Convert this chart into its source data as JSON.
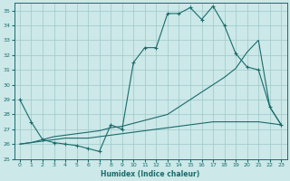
{
  "xlabel": "Humidex (Indice chaleur)",
  "xlim": [
    -0.5,
    23.5
  ],
  "ylim": [
    25,
    35.5
  ],
  "yticks": [
    25,
    26,
    27,
    28,
    29,
    30,
    31,
    32,
    33,
    34,
    35
  ],
  "xticks": [
    0,
    1,
    2,
    3,
    4,
    5,
    6,
    7,
    8,
    9,
    10,
    11,
    12,
    13,
    14,
    15,
    16,
    17,
    18,
    19,
    20,
    21,
    22,
    23
  ],
  "bg_color": "#cce8e8",
  "grid_color": "#9ec8c8",
  "line_color": "#1a6b6b",
  "line1_x": [
    0,
    1,
    2,
    3,
    4,
    5,
    6,
    7,
    8,
    9,
    10,
    11,
    12,
    13,
    14,
    15,
    16,
    17,
    18,
    19,
    20,
    21,
    22,
    23
  ],
  "line1_y": [
    29.0,
    27.5,
    26.3,
    26.1,
    26.0,
    25.9,
    25.7,
    25.5,
    27.3,
    27.0,
    31.5,
    32.5,
    32.5,
    34.8,
    34.8,
    35.2,
    34.4,
    35.3,
    34.0,
    32.1,
    31.2,
    31.0,
    28.5,
    27.3
  ],
  "line2_x": [
    0,
    1,
    2,
    3,
    4,
    5,
    6,
    7,
    8,
    9,
    10,
    11,
    12,
    13,
    14,
    15,
    16,
    17,
    18,
    19,
    20,
    21,
    22,
    23
  ],
  "line2_y": [
    26.0,
    26.1,
    26.3,
    26.5,
    26.6,
    26.7,
    26.8,
    26.9,
    27.1,
    27.2,
    27.4,
    27.6,
    27.8,
    28.0,
    28.5,
    29.0,
    29.5,
    30.0,
    30.5,
    31.1,
    32.2,
    33.0,
    28.5,
    27.3
  ],
  "line3_x": [
    0,
    1,
    2,
    3,
    4,
    5,
    6,
    7,
    8,
    9,
    10,
    11,
    12,
    13,
    14,
    15,
    16,
    17,
    18,
    19,
    20,
    21,
    22,
    23
  ],
  "line3_y": [
    26.0,
    26.1,
    26.2,
    26.3,
    26.4,
    26.4,
    26.4,
    26.5,
    26.6,
    26.7,
    26.8,
    26.9,
    27.0,
    27.1,
    27.2,
    27.3,
    27.4,
    27.5,
    27.5,
    27.5,
    27.5,
    27.5,
    27.4,
    27.3
  ]
}
